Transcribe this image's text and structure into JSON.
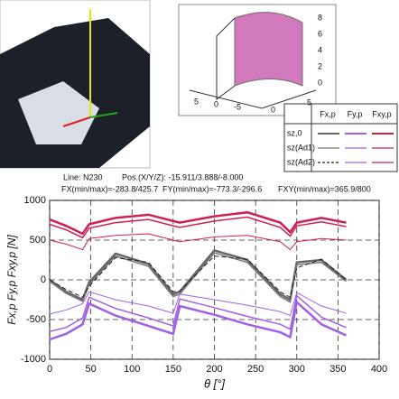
{
  "info": {
    "line": "Line: N230",
    "pos": "Pos.(X/Y/Z): -15.911/3.888/-8.000",
    "fx": "FX(min/max)=-283.8/425.7",
    "fy": "FY(min/max)=-773.3/-296.6",
    "fxy": "FXY(min/max)=365.9/800"
  },
  "inset": {
    "z_ticks": [
      "8",
      "6",
      "4",
      "2",
      "0"
    ],
    "x_ticks": [
      "5",
      "0",
      "-5"
    ],
    "y_ticks": [
      "0",
      "5"
    ]
  },
  "legend": {
    "columns": [
      "Fx,p",
      "Fy,p",
      "Fxy,p"
    ],
    "rows": [
      "sz,0",
      "sz(Ad1)",
      "sz(Ad2)"
    ]
  },
  "chart_data": {
    "type": "line",
    "x_label": "θ [°]",
    "y_label": "Fx,p Fy,p Fxy,p [N]",
    "x": [
      0,
      20,
      40,
      48,
      80,
      120,
      150,
      158,
      200,
      240,
      280,
      292,
      300,
      330,
      360
    ],
    "series": [
      {
        "color": "#666666",
        "values": [
          0,
          -150,
          -250,
          -30,
          330,
          200,
          -180,
          -150,
          370,
          250,
          -180,
          -250,
          220,
          250,
          0
        ]
      },
      {
        "color": "#777777",
        "values": [
          -20,
          -170,
          -270,
          -60,
          300,
          170,
          -210,
          -180,
          340,
          220,
          -210,
          -280,
          190,
          220,
          -20
        ]
      },
      {
        "color": "#222222",
        "dashed": true,
        "values": [
          0,
          -120,
          -220,
          -80,
          280,
          220,
          -150,
          -140,
          300,
          260,
          -150,
          -220,
          150,
          260,
          0
        ]
      },
      {
        "color": "#a060e8",
        "values": [
          -750,
          -680,
          -560,
          -300,
          -450,
          -580,
          -680,
          -330,
          -440,
          -560,
          -660,
          -720,
          -280,
          -560,
          -700
        ]
      },
      {
        "color": "#a060e8",
        "values": [
          -650,
          -600,
          -480,
          -220,
          -360,
          -480,
          -580,
          -240,
          -350,
          -460,
          -560,
          -620,
          -200,
          -470,
          -600
        ]
      },
      {
        "color": "#a060e8",
        "values": [
          -430,
          -380,
          -300,
          -150,
          -250,
          -330,
          -420,
          -180,
          -250,
          -320,
          -400,
          -450,
          -160,
          -330,
          -420
        ]
      },
      {
        "color": "#d02050",
        "values": [
          760,
          680,
          580,
          700,
          780,
          820,
          740,
          720,
          800,
          850,
          720,
          600,
          720,
          780,
          720
        ]
      },
      {
        "color": "#d02050",
        "values": [
          700,
          630,
          530,
          650,
          720,
          760,
          680,
          660,
          740,
          790,
          660,
          550,
          680,
          730,
          670
        ]
      },
      {
        "color": "#d02050",
        "values": [
          500,
          450,
          380,
          520,
          560,
          580,
          500,
          480,
          540,
          560,
          480,
          380,
          480,
          520,
          500
        ]
      }
    ],
    "xlim": [
      0,
      400
    ],
    "xticks": [
      0,
      50,
      100,
      150,
      200,
      250,
      300,
      350,
      400
    ],
    "ylim": [
      -1000,
      1000
    ],
    "yticks": [
      -1000,
      -500,
      0,
      500,
      1000
    ],
    "grid": true
  }
}
